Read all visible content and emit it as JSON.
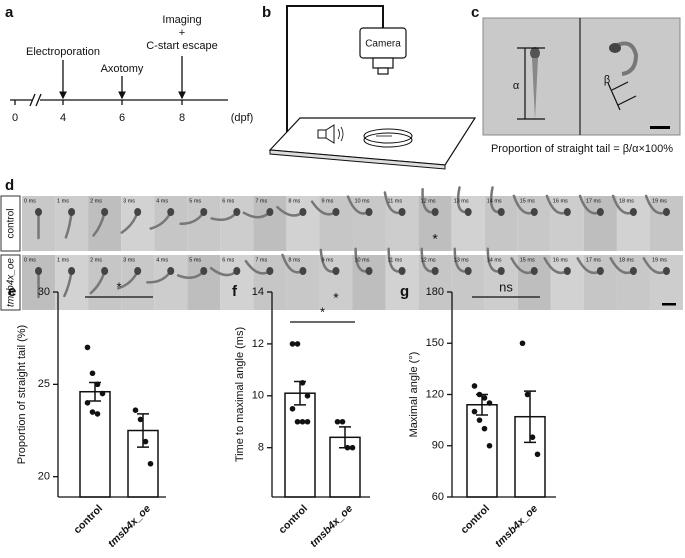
{
  "panel_a": {
    "label": "a",
    "ticks": [
      "0",
      "4",
      "6",
      "8"
    ],
    "unit": "(dpf)",
    "events": {
      "electroporation": "Electroporation",
      "axotomy": "Axotomy",
      "imaging": [
        "Imaging",
        "+",
        "C-start escape"
      ]
    }
  },
  "panel_b": {
    "label": "b",
    "camera": "Camera"
  },
  "panel_c": {
    "label": "c",
    "alpha": "α",
    "beta": "β",
    "caption": "Proportion of straight tail = β/α×100%"
  },
  "panel_d": {
    "label": "d",
    "rows": [
      {
        "label": "control",
        "mark": "*"
      },
      {
        "label": "tmsb4x_oe",
        "mark": "*"
      }
    ],
    "frames": [
      "0 ms",
      "1 ms",
      "2 ms",
      "3 ms",
      "4 ms",
      "5 ms",
      "6 ms",
      "7 ms",
      "8 ms",
      "9 ms",
      "10 ms",
      "11 ms",
      "12 ms",
      "13 ms",
      "14 ms",
      "15 ms",
      "16 ms",
      "17 ms",
      "18 ms",
      "19 ms"
    ]
  },
  "chart_data": [
    {
      "type": "bar",
      "panel_label": "e",
      "ylabel": "Proportion of straight tail (%)",
      "categories": [
        "control",
        "tmsb4x_oe"
      ],
      "values": [
        24.6,
        22.5
      ],
      "errors": [
        0.5,
        0.9
      ],
      "points": [
        [
          27.0,
          25.6,
          25.0,
          24.5,
          24.0,
          23.5,
          23.4
        ],
        [
          23.6,
          23.1,
          21.9,
          20.7
        ]
      ],
      "ylim": [
        18.9,
        30
      ],
      "yticks": [
        20,
        25,
        30
      ],
      "significance": "*",
      "color": "#ffffff"
    },
    {
      "type": "bar",
      "panel_label": "f",
      "ylabel": "Time to maximal angle (ms)",
      "categories": [
        "control",
        "tmsb4x_oe"
      ],
      "values": [
        10.1,
        8.4
      ],
      "errors": [
        0.45,
        0.4
      ],
      "points": [
        [
          12.0,
          12.0,
          10.5,
          10.0,
          9.5,
          9.0,
          9.0,
          9.0
        ],
        [
          9.0,
          9.0,
          8.0,
          8.0
        ]
      ],
      "ylim": [
        6.1,
        14
      ],
      "yticks": [
        8,
        10,
        12,
        14
      ],
      "significance": "*",
      "color": "#ffffff"
    },
    {
      "type": "bar",
      "panel_label": "g",
      "ylabel": "Maximal angle (°)",
      "categories": [
        "control",
        "tmsb4x_oe"
      ],
      "values": [
        114,
        107
      ],
      "errors": [
        6,
        15
      ],
      "points": [
        [
          125,
          120,
          118,
          115,
          110,
          105,
          100,
          90
        ],
        [
          150,
          120,
          95,
          85
        ]
      ],
      "ylim": [
        60,
        180
      ],
      "yticks": [
        60,
        90,
        120,
        150,
        180
      ],
      "significance": "ns",
      "color": "#ffffff"
    }
  ]
}
